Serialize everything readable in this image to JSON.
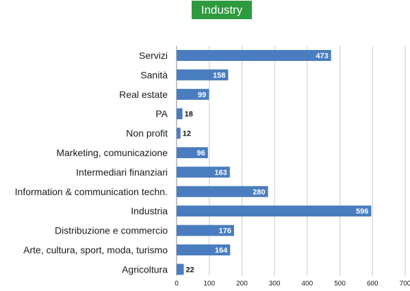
{
  "chart_data": {
    "type": "bar",
    "orientation": "horizontal",
    "title": "Industry",
    "categories": [
      "Servizi",
      "Sanità",
      "Real estate",
      "PA",
      "Non profit",
      "Marketing, comunicazione",
      "Intermediari finanziari",
      "Information & communication techn.",
      "Industria",
      "Distribuzione e commercio",
      "Arte, cultura, sport, moda, turismo",
      "Agricoltura"
    ],
    "values": [
      473,
      158,
      99,
      18,
      12,
      96,
      163,
      280,
      596,
      176,
      164,
      22
    ],
    "xlim": [
      0,
      700
    ],
    "xticks": [
      "0",
      "100",
      "200",
      "300",
      "400",
      "500",
      "600",
      "700"
    ],
    "grid": "vertical",
    "xlabel": "",
    "ylabel": "",
    "colors": {
      "bar": "#4a7dbf",
      "title_background": "#2e9a3e",
      "grid": "#c8c8c8"
    }
  }
}
